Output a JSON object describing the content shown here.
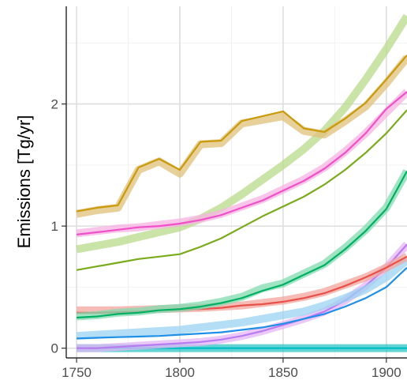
{
  "chart_data": {
    "type": "line",
    "title": "",
    "xlabel": "",
    "ylabel": "Emissions [Tg/yr]",
    "xlim": [
      1745,
      1910
    ],
    "ylim": [
      -0.08,
      2.8
    ],
    "x_ticks": [
      1750,
      1800,
      1850,
      1900
    ],
    "y_ticks": [
      0,
      1,
      2
    ],
    "x_tick_labels": [
      "1750",
      "1800",
      "1850",
      "1900"
    ],
    "y_tick_labels": [
      "0",
      "1",
      "2"
    ],
    "grid": true,
    "legend": "none",
    "series": [
      {
        "color": "#2fc4c4",
        "style": "band",
        "x": [
          1750,
          1800,
          1850,
          1900,
          1910
        ],
        "y": [
          0.0,
          0.0,
          0.0,
          0.0,
          0.0
        ]
      },
      {
        "color": "#00bfc4",
        "style": "line",
        "x": [
          1750,
          1800,
          1850,
          1900,
          1910
        ],
        "y": [
          0.0,
          0.0,
          0.0,
          0.0,
          0.0
        ]
      },
      {
        "color": "#e5b5f5",
        "style": "band",
        "x": [
          1750,
          1760,
          1770,
          1780,
          1790,
          1800,
          1810,
          1820,
          1830,
          1840,
          1850,
          1860,
          1870,
          1880,
          1890,
          1900,
          1910
        ],
        "y": [
          0.0,
          0.0,
          0.01,
          0.02,
          0.03,
          0.04,
          0.05,
          0.07,
          0.1,
          0.14,
          0.19,
          0.24,
          0.3,
          0.39,
          0.51,
          0.66,
          0.85
        ]
      },
      {
        "color": "#b77cf0",
        "style": "line",
        "x": [
          1750,
          1760,
          1770,
          1780,
          1790,
          1800,
          1810,
          1820,
          1830,
          1840,
          1850,
          1860,
          1870,
          1880,
          1890,
          1900,
          1910
        ],
        "y": [
          0.0,
          0.0,
          0.01,
          0.02,
          0.03,
          0.04,
          0.05,
          0.07,
          0.1,
          0.14,
          0.19,
          0.24,
          0.3,
          0.39,
          0.51,
          0.66,
          0.85
        ]
      },
      {
        "color": "#9bd3f2",
        "style": "band",
        "x": [
          1750,
          1760,
          1770,
          1780,
          1790,
          1800,
          1810,
          1820,
          1830,
          1840,
          1850,
          1860,
          1870,
          1880,
          1890,
          1900,
          1910
        ],
        "y": [
          0.1,
          0.11,
          0.12,
          0.13,
          0.14,
          0.15,
          0.17,
          0.19,
          0.21,
          0.24,
          0.27,
          0.3,
          0.35,
          0.41,
          0.48,
          0.58,
          0.72
        ]
      },
      {
        "color": "#1e90e8",
        "style": "line",
        "x": [
          1750,
          1760,
          1770,
          1780,
          1790,
          1800,
          1810,
          1820,
          1830,
          1840,
          1850,
          1860,
          1870,
          1880,
          1890,
          1900,
          1910
        ],
        "y": [
          0.08,
          0.085,
          0.09,
          0.095,
          0.1,
          0.11,
          0.12,
          0.13,
          0.15,
          0.17,
          0.2,
          0.24,
          0.28,
          0.34,
          0.41,
          0.5,
          0.66
        ]
      },
      {
        "color": "#f2a49b",
        "style": "band",
        "x": [
          1750,
          1760,
          1770,
          1780,
          1790,
          1800,
          1810,
          1820,
          1830,
          1840,
          1850,
          1860,
          1870,
          1880,
          1890,
          1900,
          1910
        ],
        "y": [
          0.31,
          0.31,
          0.31,
          0.315,
          0.32,
          0.325,
          0.33,
          0.34,
          0.35,
          0.37,
          0.39,
          0.42,
          0.46,
          0.52,
          0.58,
          0.66,
          0.75
        ]
      },
      {
        "color": "#e8514a",
        "style": "line",
        "x": [
          1750,
          1760,
          1770,
          1780,
          1790,
          1800,
          1810,
          1820,
          1830,
          1840,
          1850,
          1860,
          1870,
          1880,
          1890,
          1900,
          1910
        ],
        "y": [
          0.29,
          0.29,
          0.295,
          0.3,
          0.31,
          0.315,
          0.32,
          0.33,
          0.35,
          0.36,
          0.38,
          0.41,
          0.45,
          0.51,
          0.58,
          0.66,
          0.75
        ]
      },
      {
        "color": "#80dbb0",
        "style": "band",
        "x": [
          1750,
          1760,
          1770,
          1780,
          1790,
          1800,
          1810,
          1820,
          1830,
          1840,
          1850,
          1860,
          1870,
          1880,
          1890,
          1900,
          1910
        ],
        "y": [
          0.26,
          0.27,
          0.29,
          0.3,
          0.32,
          0.33,
          0.35,
          0.38,
          0.42,
          0.49,
          0.53,
          0.61,
          0.69,
          0.82,
          0.97,
          1.15,
          1.45
        ]
      },
      {
        "color": "#00b063",
        "style": "line",
        "x": [
          1750,
          1760,
          1770,
          1780,
          1790,
          1800,
          1810,
          1820,
          1830,
          1840,
          1850,
          1860,
          1870,
          1880,
          1890,
          1900,
          1910
        ],
        "y": [
          0.25,
          0.26,
          0.28,
          0.29,
          0.31,
          0.32,
          0.34,
          0.37,
          0.41,
          0.47,
          0.52,
          0.6,
          0.68,
          0.81,
          0.96,
          1.14,
          1.45
        ]
      },
      {
        "color": "#b8d98a",
        "style": "band",
        "x": [
          1750,
          1760,
          1770,
          1780,
          1790,
          1800,
          1810,
          1820,
          1830,
          1840,
          1850,
          1860,
          1870,
          1880,
          1890,
          1900,
          1910
        ],
        "y": [
          0.81,
          0.84,
          0.87,
          0.91,
          0.95,
          0.99,
          1.06,
          1.15,
          1.26,
          1.38,
          1.5,
          1.63,
          1.78,
          1.97,
          2.2,
          2.45,
          2.72
        ]
      },
      {
        "color": "#7aab1a",
        "style": "line",
        "x": [
          1750,
          1760,
          1770,
          1780,
          1790,
          1800,
          1810,
          1820,
          1830,
          1840,
          1850,
          1860,
          1870,
          1880,
          1890,
          1900,
          1910
        ],
        "y": [
          0.64,
          0.67,
          0.7,
          0.73,
          0.75,
          0.77,
          0.83,
          0.9,
          0.99,
          1.08,
          1.16,
          1.24,
          1.34,
          1.46,
          1.6,
          1.76,
          1.95
        ]
      },
      {
        "color": "#f7b3e3",
        "style": "band",
        "x": [
          1750,
          1760,
          1770,
          1780,
          1790,
          1800,
          1810,
          1820,
          1830,
          1840,
          1850,
          1860,
          1870,
          1880,
          1890,
          1900,
          1910
        ],
        "y": [
          0.94,
          0.96,
          0.98,
          0.99,
          1.01,
          1.03,
          1.06,
          1.1,
          1.16,
          1.22,
          1.3,
          1.38,
          1.48,
          1.61,
          1.76,
          1.93,
          2.1
        ]
      },
      {
        "color": "#f050c8",
        "style": "line",
        "x": [
          1750,
          1760,
          1770,
          1780,
          1790,
          1800,
          1810,
          1820,
          1830,
          1840,
          1850,
          1860,
          1870,
          1880,
          1890,
          1900,
          1910
        ],
        "y": [
          0.93,
          0.95,
          0.97,
          0.99,
          1.0,
          1.02,
          1.05,
          1.09,
          1.15,
          1.21,
          1.29,
          1.37,
          1.47,
          1.6,
          1.76,
          1.96,
          2.1
        ]
      },
      {
        "color": "#e0c07a",
        "style": "band",
        "x": [
          1750,
          1760,
          1770,
          1780,
          1790,
          1800,
          1810,
          1820,
          1830,
          1840,
          1850,
          1860,
          1870,
          1880,
          1890,
          1900,
          1910
        ],
        "y": [
          1.1,
          1.13,
          1.15,
          1.46,
          1.53,
          1.43,
          1.67,
          1.68,
          1.84,
          1.87,
          1.9,
          1.78,
          1.75,
          1.86,
          1.98,
          2.17,
          2.38
        ]
      },
      {
        "color": "#c99a0a",
        "style": "line",
        "x": [
          1750,
          1760,
          1770,
          1780,
          1790,
          1800,
          1810,
          1820,
          1830,
          1840,
          1850,
          1860,
          1870,
          1880,
          1890,
          1900,
          1910
        ],
        "y": [
          1.12,
          1.15,
          1.17,
          1.48,
          1.55,
          1.46,
          1.69,
          1.7,
          1.86,
          1.9,
          1.94,
          1.8,
          1.77,
          1.88,
          2.01,
          2.2,
          2.4
        ]
      }
    ]
  }
}
